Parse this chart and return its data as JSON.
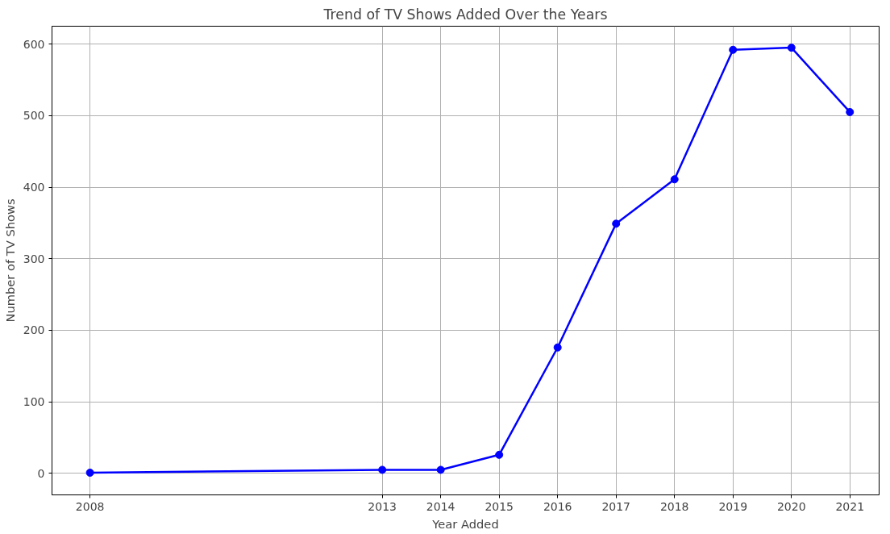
{
  "chart_data": {
    "type": "line",
    "title": "Trend of TV Shows Added Over the Years",
    "xlabel": "Year Added",
    "ylabel": "Number of TV Shows",
    "x": [
      2008,
      2013,
      2014,
      2015,
      2016,
      2017,
      2018,
      2019,
      2020,
      2021
    ],
    "series": [
      {
        "color": "#0000ff",
        "values": [
          1,
          5,
          5,
          26,
          176,
          349,
          411,
          592,
          595,
          505
        ]
      }
    ],
    "xlim": [
      2007.35,
      2021.5
    ],
    "xticks": [
      2008,
      2013,
      2014,
      2015,
      2016,
      2017,
      2018,
      2019,
      2020,
      2021
    ],
    "ylim": [
      -30,
      625
    ],
    "yticks": [
      0,
      100,
      200,
      300,
      400,
      500,
      600
    ],
    "grid": true,
    "marker": "circle",
    "line_style": "solid"
  }
}
